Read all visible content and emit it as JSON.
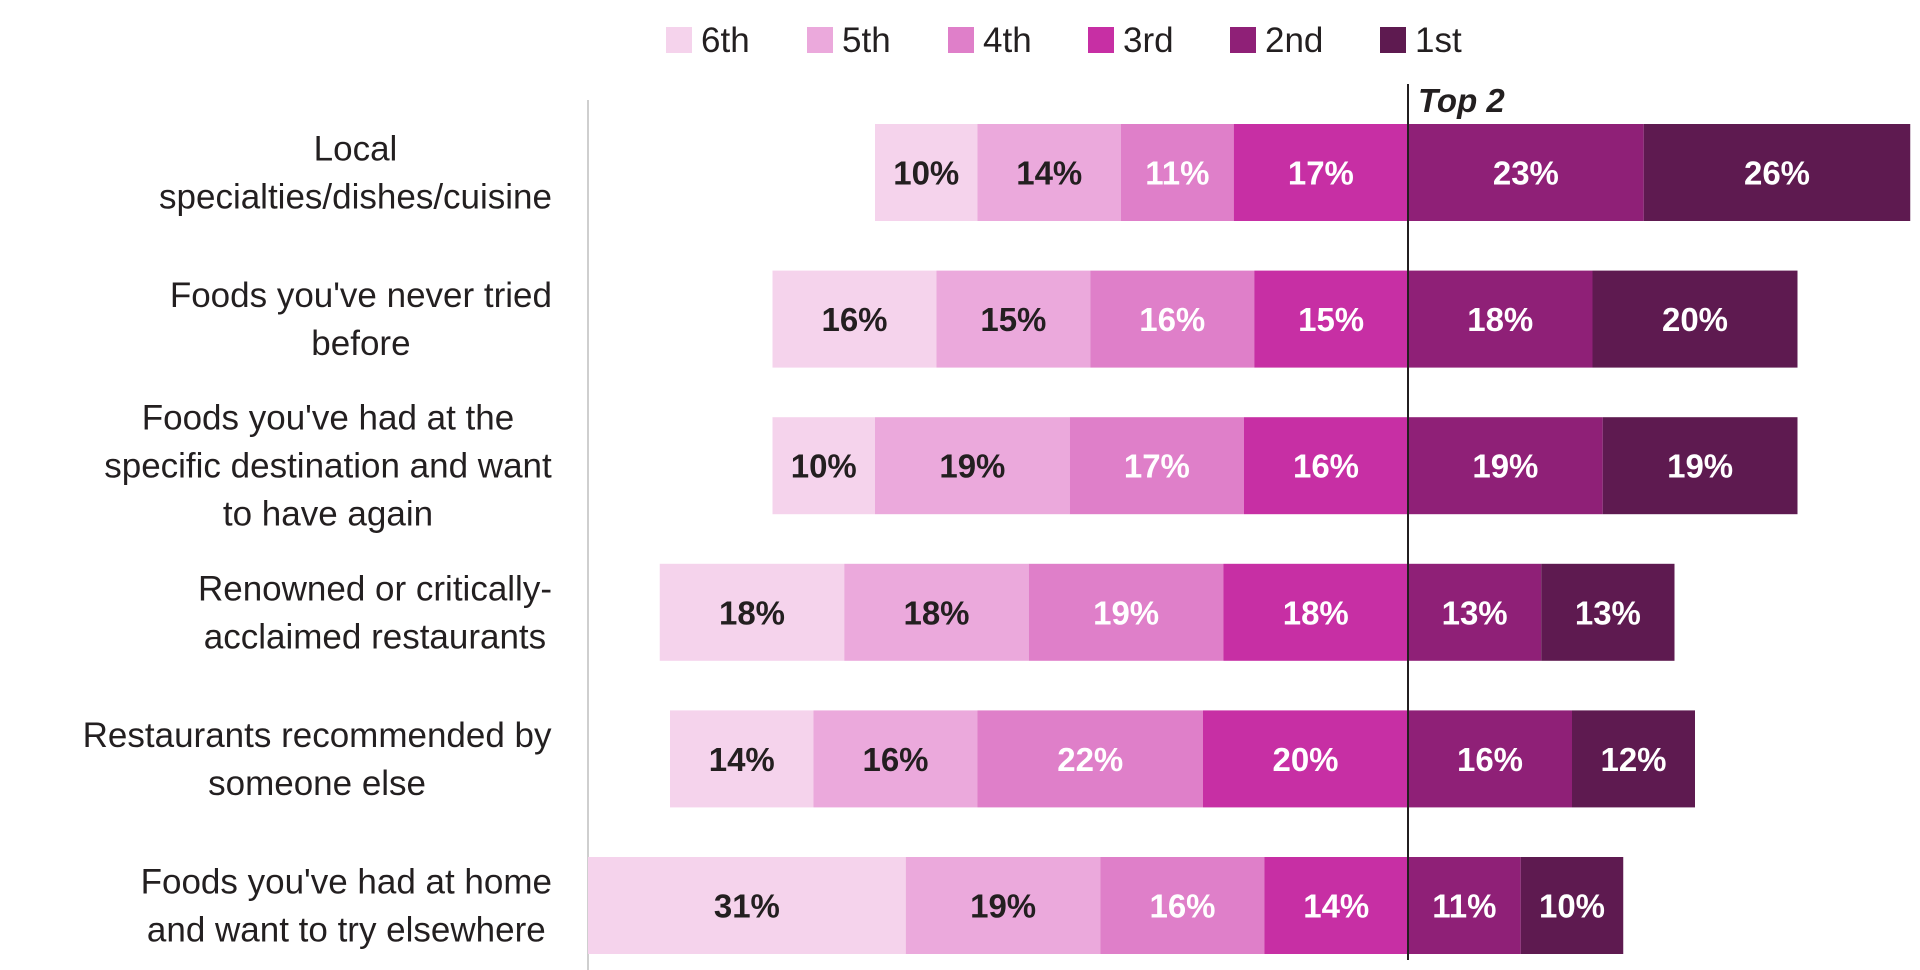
{
  "chart_data": {
    "type": "bar",
    "orientation": "horizontal",
    "stacked": true,
    "diverging": true,
    "reference_label": "Top 2",
    "categories": [
      "Local specialties/dishes/cuisine",
      "Foods you've never tried before",
      "Foods you've had at the specific destination and want to have again",
      "Renowned or critically-acclaimed restaurants",
      "Restaurants recommended by someone else",
      "Foods you've had at home and want to try elsewhere"
    ],
    "category_lines": [
      [
        "Local",
        "specialties/dishes/cuisine"
      ],
      [
        "Foods you've never tried",
        "before"
      ],
      [
        "Foods you've had at the",
        "specific destination and want",
        "to have again"
      ],
      [
        "Renowned or critically-",
        "acclaimed restaurants"
      ],
      [
        "Restaurants recommended by",
        "someone else"
      ],
      [
        "Foods you've had at home",
        "and want to try elsewhere"
      ]
    ],
    "series": [
      {
        "name": "6th",
        "color": "#f5d3ec",
        "text_color": "#231f20",
        "values": [
          10,
          16,
          10,
          18,
          14,
          31
        ]
      },
      {
        "name": "5th",
        "color": "#eba9dc",
        "text_color": "#231f20",
        "values": [
          14,
          15,
          19,
          18,
          16,
          19
        ]
      },
      {
        "name": "4th",
        "color": "#df7fc9",
        "text_color": "#ffffff",
        "values": [
          11,
          16,
          17,
          19,
          22,
          16
        ]
      },
      {
        "name": "3rd",
        "color": "#c72fa4",
        "text_color": "#ffffff",
        "values": [
          17,
          15,
          16,
          18,
          20,
          14
        ]
      },
      {
        "name": "2nd",
        "color": "#8f2077",
        "text_color": "#ffffff",
        "values": [
          23,
          18,
          19,
          13,
          16,
          11
        ]
      },
      {
        "name": "1st",
        "color": "#5e1a50",
        "text_color": "#ffffff",
        "values": [
          26,
          20,
          19,
          13,
          12,
          10
        ]
      }
    ],
    "value_suffix": "%",
    "legend_order": [
      "6th",
      "5th",
      "4th",
      "3rd",
      "2nd",
      "1st"
    ],
    "legend_position": "top"
  }
}
